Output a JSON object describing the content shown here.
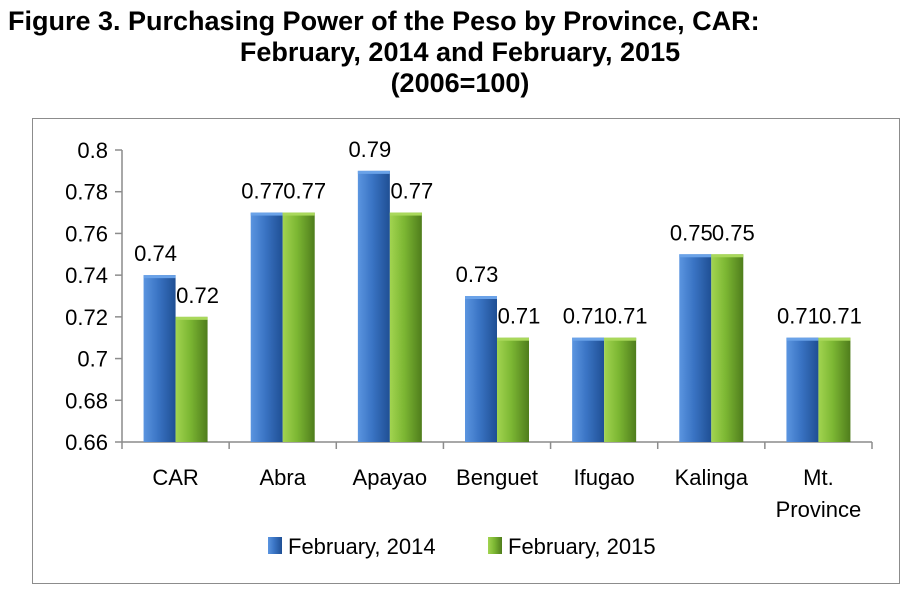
{
  "title": {
    "line1": "Figure 3.  Purchasing Power of the Peso by Province, CAR:",
    "line2": "February, 2014 and February, 2015",
    "line3": "(2006=100)"
  },
  "colors": {
    "series_2014": "#3a74c4",
    "series_2015": "#7cb733",
    "axis": "#8c8c8c"
  },
  "chart_data": {
    "type": "bar",
    "categories": [
      "CAR",
      "Abra",
      "Apayao",
      "Benguet",
      "Ifugao",
      "Kalinga",
      "Mt. Province"
    ],
    "series": [
      {
        "name": "February, 2014",
        "values": [
          0.74,
          0.77,
          0.79,
          0.73,
          0.71,
          0.75,
          0.71
        ]
      },
      {
        "name": "February, 2015",
        "values": [
          0.72,
          0.77,
          0.77,
          0.71,
          0.71,
          0.75,
          0.71
        ]
      }
    ],
    "data_labels": [
      [
        "0.74",
        "0.77",
        "0.79",
        "0.73",
        "0.71",
        "0.75",
        "0.71"
      ],
      [
        "0.72",
        "0.77",
        "0.77",
        "0.71",
        "0.71",
        "0.75",
        "0.71"
      ]
    ],
    "yticks": [
      "0.66",
      "0.68",
      "0.7",
      "0.72",
      "0.74",
      "0.76",
      "0.78",
      "0.8"
    ],
    "ylim": [
      0.66,
      0.8
    ],
    "legend_position": "bottom",
    "grid": false
  }
}
